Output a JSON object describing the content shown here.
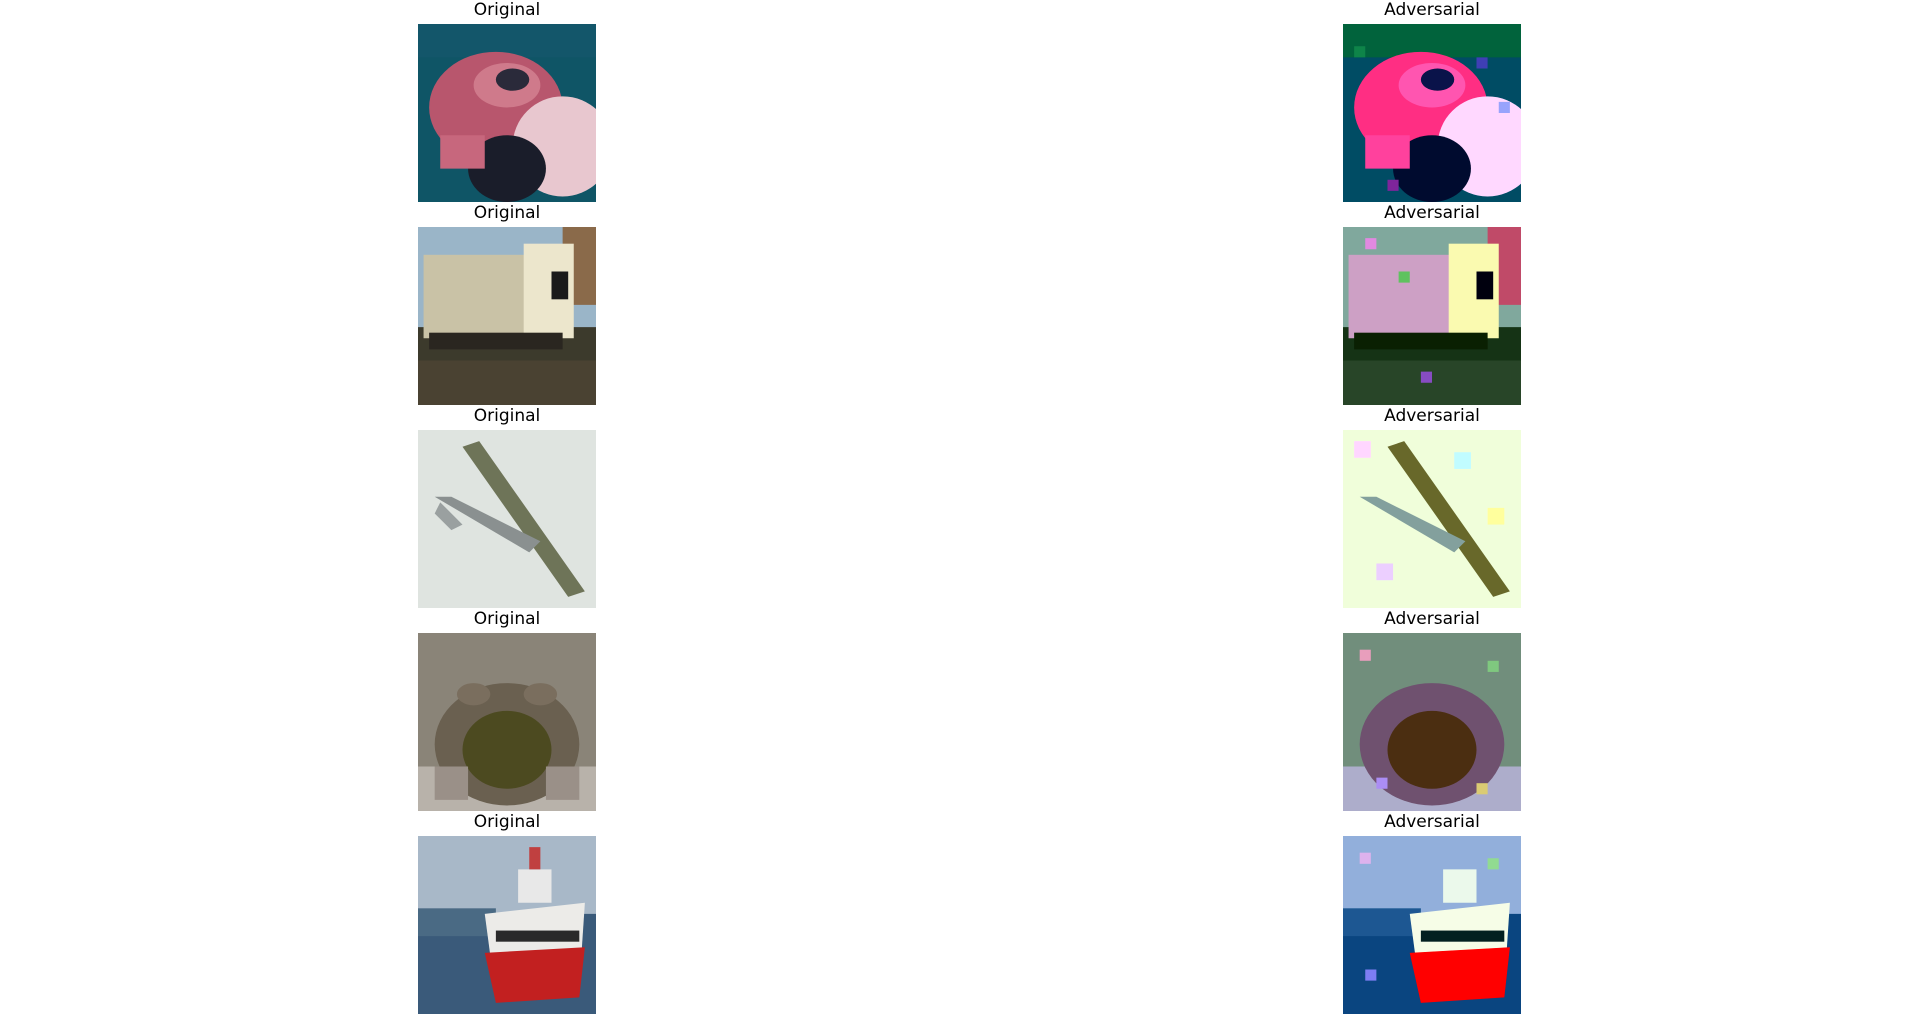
{
  "figure": {
    "rows": [
      {
        "original_title": "Original",
        "adversarial_title": "Adversarial",
        "subject": "frog"
      },
      {
        "original_title": "Original",
        "adversarial_title": "Adversarial",
        "subject": "truck"
      },
      {
        "original_title": "Original",
        "adversarial_title": "Adversarial",
        "subject": "airplane"
      },
      {
        "original_title": "Original",
        "adversarial_title": "Adversarial",
        "subject": "frog"
      },
      {
        "original_title": "Original",
        "adversarial_title": "Adversarial",
        "subject": "ship"
      }
    ]
  }
}
